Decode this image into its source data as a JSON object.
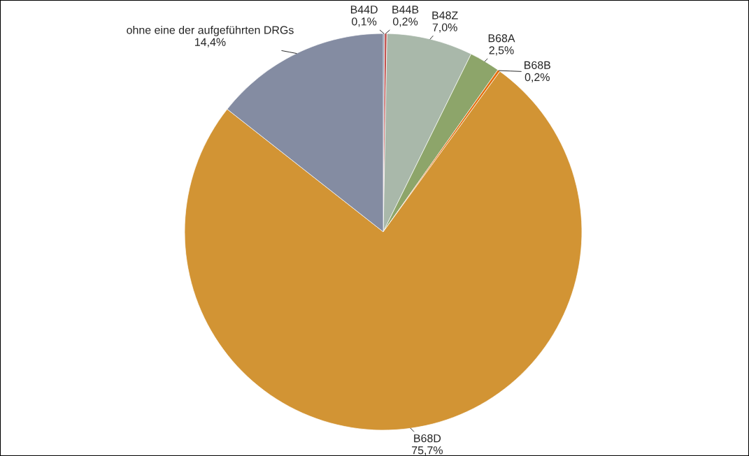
{
  "chart_data": {
    "type": "pie",
    "categories": [
      "B44D",
      "B44B",
      "B48Z",
      "B68A",
      "B68B",
      "B68D",
      "ohne eine der aufgeführten DRGs"
    ],
    "values": [
      0.1,
      0.2,
      7.0,
      2.5,
      0.2,
      75.7,
      14.4
    ],
    "value_labels": [
      "0,1%",
      "0,2%",
      "7,0%",
      "2,5%",
      "0,2%",
      "75,7%",
      "14,4%"
    ],
    "colors": [
      "#1f4e79",
      "#c0504d",
      "#a9b8aa",
      "#8da56a",
      "#e36c0a",
      "#d29434",
      "#848ca2"
    ],
    "legend": false
  }
}
